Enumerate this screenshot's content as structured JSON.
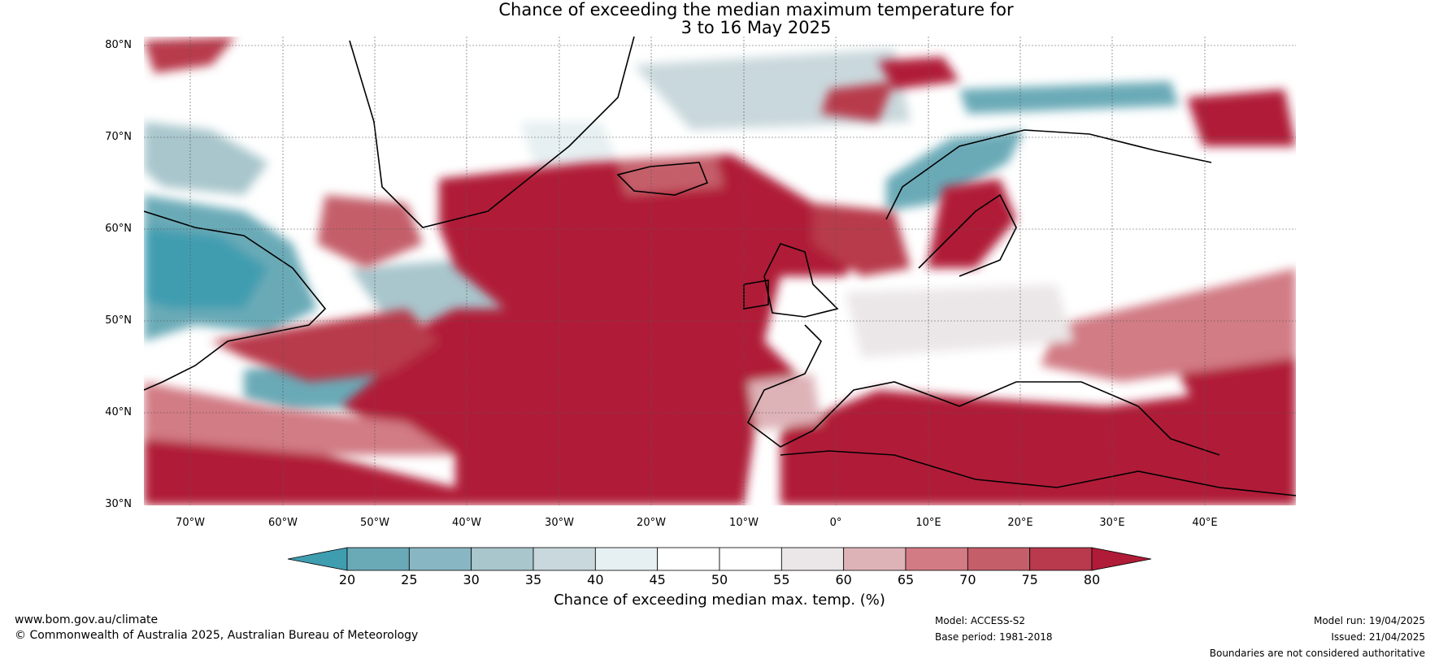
{
  "title_line1": "Chance of exceeding the median maximum temperature for",
  "title_line2": "3 to 16 May 2025",
  "lat_labels": [
    "80°N",
    "70°N",
    "60°N",
    "50°N",
    "40°N",
    "30°N"
  ],
  "lon_labels": [
    "70°W",
    "60°W",
    "50°W",
    "40°W",
    "30°W",
    "20°W",
    "10°W",
    "0°",
    "10°E",
    "20°E",
    "30°E",
    "40°E"
  ],
  "colorbar": {
    "ticks": [
      "20",
      "25",
      "30",
      "35",
      "40",
      "45",
      "50",
      "55",
      "60",
      "65",
      "70",
      "75",
      "80"
    ],
    "colors": [
      "#3f9db0",
      "#6aaab7",
      "#88b7c3",
      "#a8c6cc",
      "#c9d8dc",
      "#e6eff1",
      "#ffffff",
      "#ffffff",
      "#ebe7e8",
      "#deb3b8",
      "#d27b85",
      "#c45f6a",
      "#b83a4c",
      "#b01c37"
    ],
    "label": "Chance of exceeding median max. temp. (%)"
  },
  "footer": {
    "website": "www.bom.gov.au/climate",
    "copyright": "© Commonwealth of Australia 2025, Australian Bureau of Meteorology",
    "model": "Model: ACCESS-S2",
    "base_period": "Base period: 1981-2018",
    "model_run": "Model run: 19/04/2025",
    "issued": "Issued: 21/04/2025",
    "disclaimer": "Boundaries are not considered authoritative"
  }
}
